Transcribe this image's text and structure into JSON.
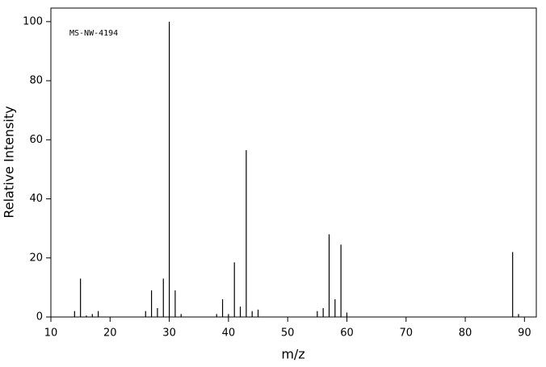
{
  "chart_data": {
    "type": "stem",
    "annotation": "MS-NW-4194",
    "x_label": "m/z",
    "y_label": "Relative Intensity",
    "color": "#000000",
    "x": [
      14,
      15,
      16,
      17,
      18,
      26,
      27,
      28,
      29,
      30,
      31,
      32,
      38,
      39,
      40,
      41,
      42,
      43,
      44,
      45,
      55,
      56,
      57,
      58,
      59,
      60,
      88,
      89
    ],
    "values": [
      2,
      13,
      0.5,
      1,
      2,
      2,
      9,
      3,
      13,
      100,
      9,
      1,
      1,
      6,
      1,
      18.5,
      3.5,
      56.5,
      2,
      2.5,
      2,
      3,
      28,
      6,
      24.5,
      1.5,
      22,
      1
    ],
    "xlim": [
      10,
      92
    ],
    "ylim": [
      0,
      104.6
    ],
    "xticks": [
      10,
      20,
      30,
      40,
      50,
      60,
      70,
      80,
      90
    ],
    "yticks": [
      0,
      20,
      40,
      60,
      80,
      100
    ]
  }
}
